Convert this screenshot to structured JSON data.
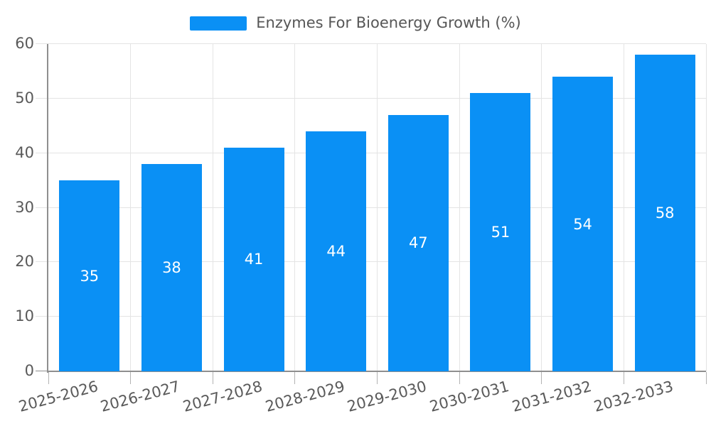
{
  "legend": {
    "series_label": "Enzymes For Bioenergy Growth (%)"
  },
  "chart_data": {
    "type": "bar",
    "title": "Enzymes For Bioenergy Growth (%)",
    "categories": [
      "2025-2026",
      "2026-2027",
      "2027-2028",
      "2028-2029",
      "2029-2030",
      "2030-2031",
      "2031-2032",
      "2032-2033"
    ],
    "series": [
      {
        "name": "Enzymes For Bioenergy Growth (%)",
        "values": [
          35,
          38,
          41,
          44,
          47,
          51,
          54,
          58
        ]
      }
    ],
    "value_labels_shown": true,
    "xlabel": "",
    "ylabel": "",
    "ylim": [
      0,
      60
    ],
    "y_ticks": [
      0,
      10,
      20,
      30,
      40,
      50,
      60
    ],
    "grid": true,
    "legend_position": "top-center",
    "x_label_rotation_deg": -15,
    "colors": {
      "bar": "#0a90f5",
      "value_label": "#ffffff",
      "axis_text": "#595959",
      "legend_text": "#565656",
      "gridline": "#e4e4e4",
      "axis_line": "#8f8f8f",
      "x_tick": "#b3b3b3"
    }
  }
}
